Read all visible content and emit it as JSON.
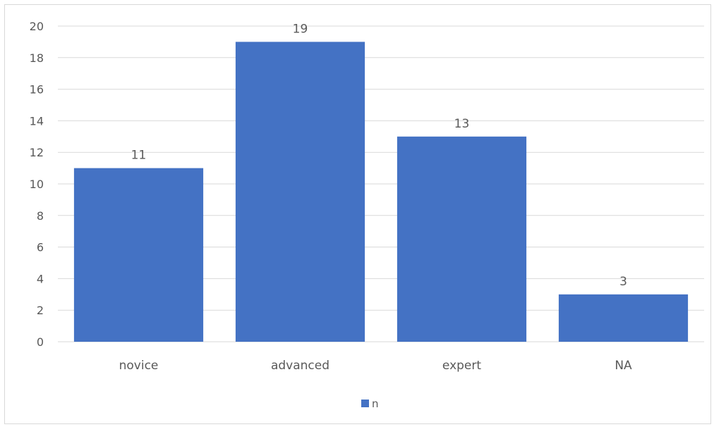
{
  "chart_data": {
    "type": "bar",
    "title": "",
    "xlabel": "",
    "ylabel": "",
    "categories": [
      "novice",
      "advanced",
      "expert",
      "NA"
    ],
    "series": [
      {
        "name": "n",
        "values": [
          11,
          19,
          13,
          3
        ],
        "color": "#4472c4"
      }
    ],
    "ylim": [
      0,
      20
    ],
    "yticks": [
      0,
      2,
      4,
      6,
      8,
      10,
      12,
      14,
      16,
      18,
      20
    ],
    "grid": true,
    "legend_position": "bottom",
    "data_labels": true
  },
  "colors": {
    "bar": "#4472c4",
    "gridline": "#d9d9d9",
    "text": "#595959",
    "frame": "#d9d9d9"
  }
}
